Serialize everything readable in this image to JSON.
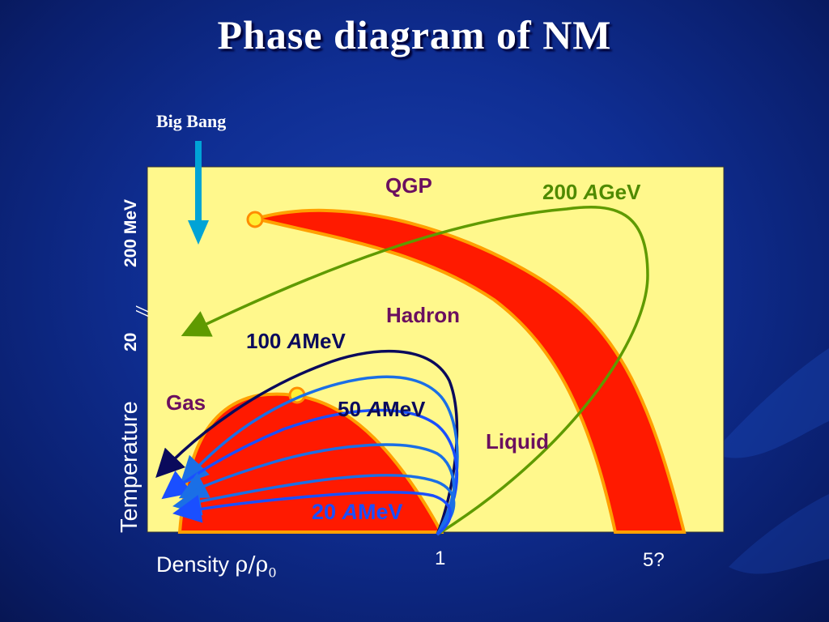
{
  "slide": {
    "title": "Phase diagram of NM"
  },
  "labels": {
    "big_bang": "Big Bang",
    "y_tick_200": "200 MeV",
    "y_tick_20": "20",
    "axis_break": "//",
    "y_axis": "Temperature",
    "x_axis_prefix": "Density ",
    "x_axis_rho": "ρ/ρ",
    "x_axis_sub": "0",
    "x_tick_1": "1",
    "x_tick_5": "5?"
  },
  "regions": {
    "qgp": "QGP",
    "hadron": "Hadron",
    "gas": "Gas",
    "liquid": "Liquid"
  },
  "trajectories": {
    "e200_num": "200 ",
    "e200_a": "A",
    "e200_unit": "GeV",
    "e100_num": "100 ",
    "e100_a": "A",
    "e100_unit": "MeV",
    "e50_num": "50 ",
    "e50_a": "A",
    "e50_unit": "MeV",
    "e20_num": "20 ",
    "e20_a": "A",
    "e20_unit": "MeV"
  },
  "colors": {
    "plot_background": "#fff88c",
    "phase_band": "#ff1a00",
    "band_border": "#ffa000",
    "critical_point": "#ffee33",
    "trajectory_200": "#5f9a00",
    "trajectory_100": "#0a0a5c",
    "trajectory_50": "#1a6fe6",
    "trajectory_20": "#1a4fff",
    "big_bang_arrow": "#00a3d6"
  }
}
